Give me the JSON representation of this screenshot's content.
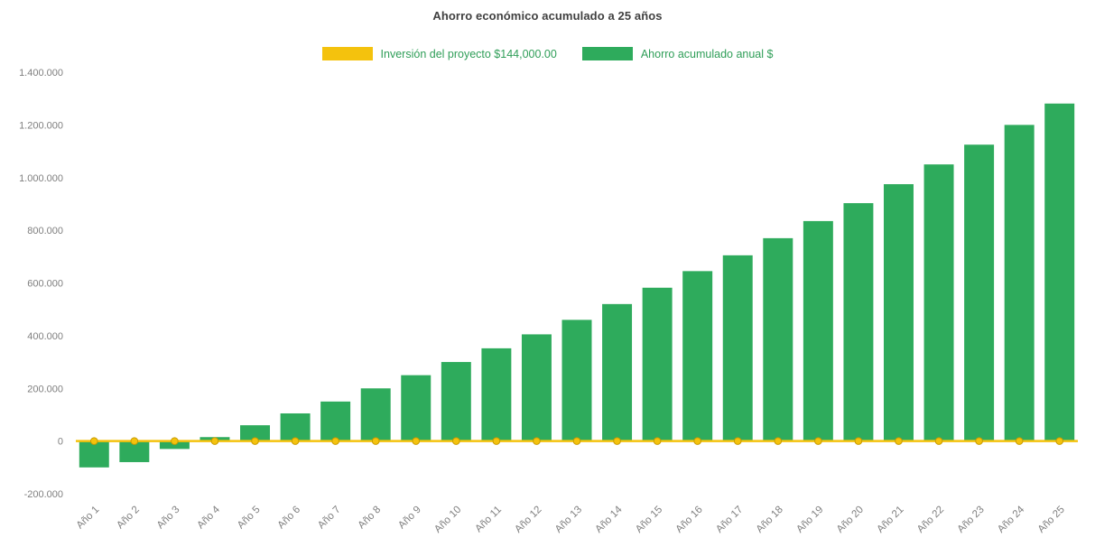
{
  "colors": {
    "background": "#ffffff",
    "title_text": "#404040",
    "axis_label_text": "#7f7f7f",
    "legend_text": "#2f9e58",
    "bar_green": "#2eab5c",
    "line_yellow": "#f4c20d",
    "marker_stroke": "#c79a00"
  },
  "chart_data": {
    "type": "bar",
    "title": "Ahorro económico acumulado a 25 años",
    "categories": [
      "Año 1",
      "Año 2",
      "Año 3",
      "Año 4",
      "Año 5",
      "Año 6",
      "Año 7",
      "Año 8",
      "Año 9",
      "Año 10",
      "Año 11",
      "Año 12",
      "Año 13",
      "Año 14",
      "Año 15",
      "Año 16",
      "Año 17",
      "Año 18",
      "Año 19",
      "Año 20",
      "Año 21",
      "Año 22",
      "Año 23",
      "Año 24",
      "Año 25"
    ],
    "series": [
      {
        "name": "Inversión del proyecto $144,000.00",
        "type": "line",
        "color": "#f4c20d",
        "values": [
          0,
          0,
          0,
          0,
          0,
          0,
          0,
          0,
          0,
          0,
          0,
          0,
          0,
          0,
          0,
          0,
          0,
          0,
          0,
          0,
          0,
          0,
          0,
          0,
          0
        ]
      },
      {
        "name": "Ahorro acumulado anual $",
        "type": "bar",
        "color": "#2eab5c",
        "values": [
          -100000,
          -80000,
          -30000,
          15000,
          60000,
          105000,
          150000,
          200000,
          250000,
          300000,
          352000,
          405000,
          460000,
          520000,
          582000,
          645000,
          705000,
          770000,
          835000,
          903000,
          975000,
          1050000,
          1125000,
          1200000,
          1281000
        ]
      }
    ],
    "ylim": [
      -200000,
      1400000
    ],
    "ytick_step": 200000,
    "ytick_labels": [
      "-200.000",
      "0",
      "200.000",
      "400.000",
      "600.000",
      "800.000",
      "1.000.000",
      "1.200.000",
      "1.400.000"
    ],
    "grid": false,
    "legend_position": "top",
    "xlabel": "",
    "ylabel": ""
  }
}
